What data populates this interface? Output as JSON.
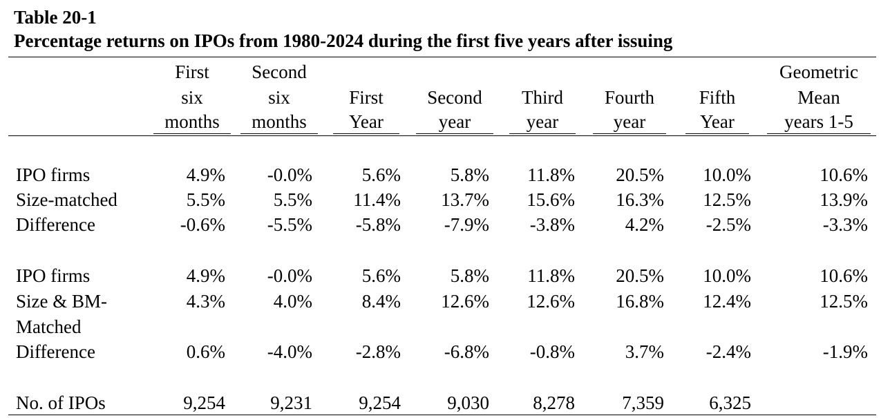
{
  "title": {
    "line1": "Table 20-1",
    "line2": "Percentage returns on IPOs from 1980-2024 during the first five years after issuing"
  },
  "columns": [
    {
      "lines": [
        "First",
        "six",
        "months"
      ]
    },
    {
      "lines": [
        "Second",
        "six",
        "months"
      ]
    },
    {
      "lines": [
        "",
        "First",
        "Year"
      ]
    },
    {
      "lines": [
        "",
        "Second",
        "year"
      ]
    },
    {
      "lines": [
        "",
        "Third",
        "year"
      ]
    },
    {
      "lines": [
        "",
        "Fourth",
        "year"
      ]
    },
    {
      "lines": [
        "",
        "Fifth",
        "Year"
      ]
    },
    {
      "lines": [
        "Geometric",
        "Mean",
        "years 1-5"
      ]
    }
  ],
  "rows": [
    {
      "label": "IPO firms",
      "values": [
        "4.9%",
        "-0.0%",
        "5.6%",
        "5.8%",
        "11.8%",
        "20.5%",
        "10.0%",
        "10.6%"
      ]
    },
    {
      "label": "Size-matched",
      "values": [
        "5.5%",
        "5.5%",
        "11.4%",
        "13.7%",
        "15.6%",
        "16.3%",
        "12.5%",
        "13.9%"
      ]
    },
    {
      "label": "Difference",
      "values": [
        "-0.6%",
        "-5.5%",
        "-5.8%",
        "-7.9%",
        "-3.8%",
        "4.2%",
        "-2.5%",
        "-3.3%"
      ]
    },
    {
      "label": "IPO firms",
      "values": [
        "4.9%",
        "-0.0%",
        "5.6%",
        "5.8%",
        "11.8%",
        "20.5%",
        "10.0%",
        "10.6%"
      ]
    },
    {
      "label": "Size & BM-",
      "label2": "Matched",
      "values": [
        "4.3%",
        "4.0%",
        "8.4%",
        "12.6%",
        "12.6%",
        "16.8%",
        "12.4%",
        "12.5%"
      ]
    },
    {
      "label": "Difference",
      "values": [
        "0.6%",
        "-4.0%",
        "-2.8%",
        "-6.8%",
        "-0.8%",
        "3.7%",
        "-2.4%",
        "-1.9%"
      ]
    },
    {
      "label": "No. of IPOs",
      "values": [
        "9,254",
        "9,231",
        "9,254",
        "9,030",
        "8,278",
        "7,359",
        "6,325",
        ""
      ]
    }
  ]
}
